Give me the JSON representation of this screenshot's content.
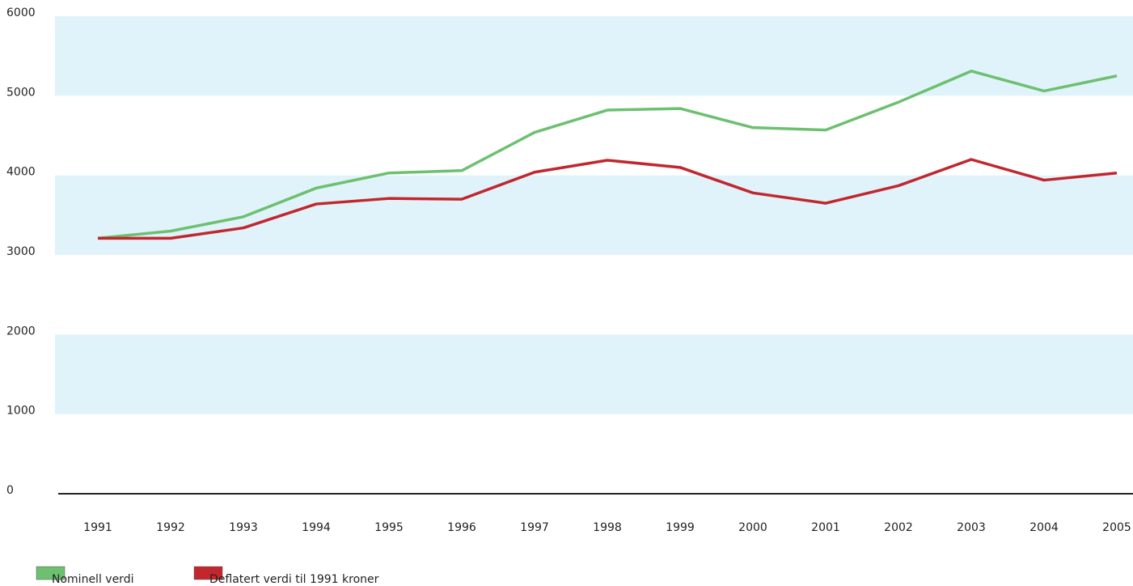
{
  "chart_data": {
    "type": "line",
    "categories": [
      "1991",
      "1992",
      "1993",
      "1994",
      "1995",
      "1996",
      "1997",
      "1998",
      "1999",
      "2000",
      "2001",
      "2002",
      "2003",
      "2004",
      "2005"
    ],
    "series": [
      {
        "name": "Nominell verdi",
        "color": "#6cc070",
        "values": [
          3210,
          3300,
          3480,
          3840,
          4030,
          4060,
          4540,
          4820,
          4840,
          4600,
          4570,
          4920,
          5310,
          5060,
          5250
        ]
      },
      {
        "name": "Deflatert verdi til 1991 kroner",
        "color": "#c1272d",
        "values": [
          3210,
          3210,
          3340,
          3640,
          3710,
          3700,
          4040,
          4190,
          4100,
          3780,
          3650,
          3870,
          4200,
          3940,
          4030
        ]
      }
    ],
    "ylim": [
      0,
      6000
    ],
    "yticks": [
      0,
      1000,
      2000,
      3000,
      4000,
      5000,
      6000
    ],
    "grid_bands": true,
    "band_color": "#e0f3fa",
    "legend": "bottom-left"
  }
}
